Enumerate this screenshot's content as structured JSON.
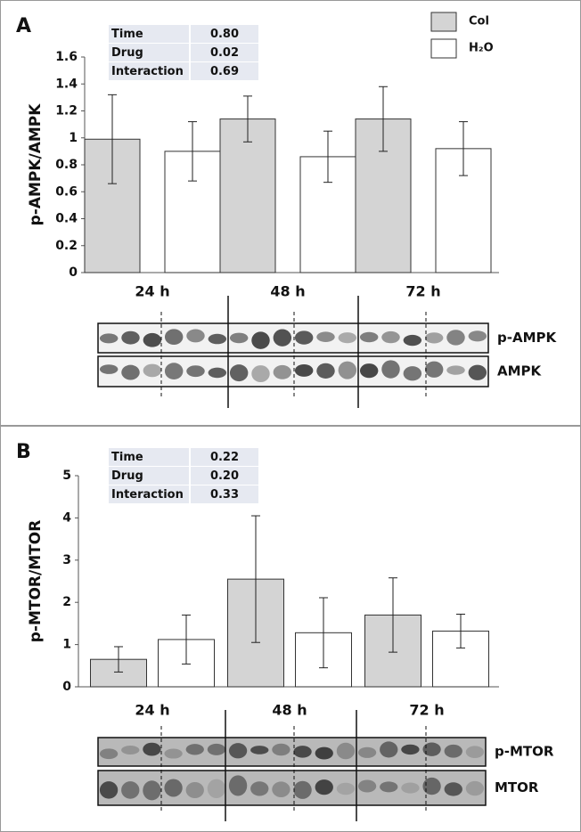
{
  "chart_data": [
    {
      "type": "bar",
      "panel": "A",
      "ylabel": "p-AMPK/AMPK",
      "categories": [
        "24 h",
        "48 h",
        "72 h"
      ],
      "series": [
        {
          "name": "Col",
          "color": "#d4d4d4",
          "values": [
            0.99,
            1.14,
            1.14
          ],
          "errors": [
            0.33,
            0.17,
            0.24
          ]
        },
        {
          "name": "H₂O",
          "color": "#ffffff",
          "values": [
            0.9,
            0.86,
            0.92
          ],
          "errors": [
            0.22,
            0.19,
            0.2
          ]
        }
      ],
      "ylim": [
        0,
        1.6
      ],
      "yticks": [
        0,
        0.2,
        0.4,
        0.6,
        0.8,
        1,
        1.2,
        1.4,
        1.6
      ],
      "stats": [
        [
          "Time",
          "0.80"
        ],
        [
          "Drug",
          "0.02"
        ],
        [
          "Interaction",
          "0.69"
        ]
      ],
      "blot_labels": [
        "p-AMPK",
        "AMPK"
      ]
    },
    {
      "type": "bar",
      "panel": "B",
      "ylabel": "p-MTOR/MTOR",
      "categories": [
        "24 h",
        "48 h",
        "72 h"
      ],
      "series": [
        {
          "color": "#d4d4d4",
          "values": [
            0.65,
            2.55,
            1.7
          ],
          "errors": [
            0.3,
            1.5,
            0.88
          ]
        },
        {
          "color": "#ffffff",
          "values": [
            1.12,
            1.28,
            1.32
          ],
          "errors": [
            0.58,
            0.83,
            0.4
          ]
        }
      ],
      "ylim": [
        0,
        5
      ],
      "yticks": [
        0,
        1,
        2,
        3,
        4,
        5
      ],
      "stats": [
        [
          "Time",
          "0.22"
        ],
        [
          "Drug",
          "0.20"
        ],
        [
          "Interaction",
          "0.33"
        ]
      ],
      "blot_labels": [
        "p-MTOR",
        "MTOR"
      ]
    }
  ]
}
